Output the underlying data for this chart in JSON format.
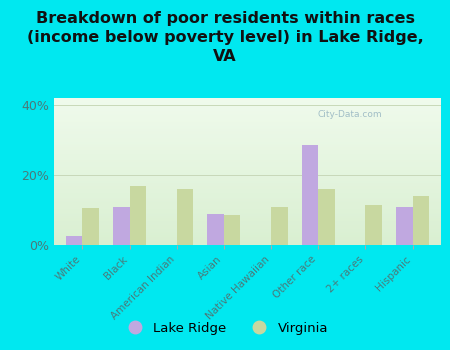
{
  "title": "Breakdown of poor residents within races\n(income below poverty level) in Lake Ridge,\nVA",
  "categories": [
    "White",
    "Black",
    "American Indian",
    "Asian",
    "Native Hawaiian",
    "Other race",
    "2+ races",
    "Hispanic"
  ],
  "lake_ridge": [
    2.5,
    11.0,
    0,
    9.0,
    0,
    28.5,
    0,
    11.0
  ],
  "virginia": [
    10.5,
    17.0,
    16.0,
    8.5,
    11.0,
    16.0,
    11.5,
    14.0
  ],
  "lake_ridge_color": "#c0a8e0",
  "virginia_color": "#c8d8a0",
  "bg_outer": "#00e8f0",
  "bg_chart": "#e8f5e0",
  "ylim": [
    0,
    42
  ],
  "yticks": [
    0,
    20,
    40
  ],
  "ytick_labels": [
    "0%",
    "20%",
    "40%"
  ],
  "grid_color": "#c8d8b8",
  "title_fontsize": 11.5,
  "tick_label_color": "#4a7a7a",
  "legend_labels": [
    "Lake Ridge",
    "Virginia"
  ],
  "watermark": "City-Data.com"
}
